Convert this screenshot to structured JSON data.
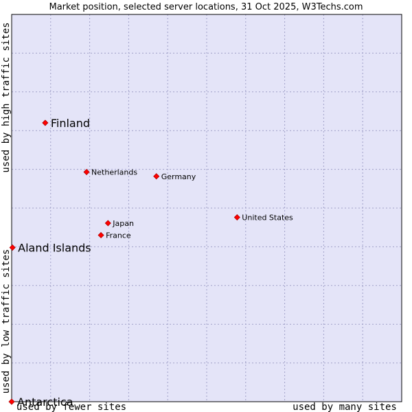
{
  "chart_data": {
    "type": "scatter",
    "title": "Market position, selected server locations, 31 Oct 2025, W3Techs.com",
    "xlabel_low": "used by fewer sites",
    "xlabel_high": "used by many sites",
    "ylabel_low": "used by low traffic sites",
    "ylabel_high": "used by high traffic sites",
    "xlim": [
      0,
      100
    ],
    "ylim": [
      0,
      100
    ],
    "grid": true,
    "series": [
      {
        "name": "Server locations",
        "points": [
          {
            "label": "Finland",
            "x": 8.6,
            "y": 72.0,
            "emphasis": true
          },
          {
            "label": "Netherlands",
            "x": 19.2,
            "y": 59.3,
            "emphasis": false
          },
          {
            "label": "Germany",
            "x": 37.1,
            "y": 58.2,
            "emphasis": false
          },
          {
            "label": "United States",
            "x": 57.8,
            "y": 47.6,
            "emphasis": false
          },
          {
            "label": "Japan",
            "x": 24.7,
            "y": 46.1,
            "emphasis": false
          },
          {
            "label": "France",
            "x": 22.9,
            "y": 43.0,
            "emphasis": false
          },
          {
            "label": "Aland Islands",
            "x": 0.2,
            "y": 39.8,
            "emphasis": true
          },
          {
            "label": "Antarctica",
            "x": 0.0,
            "y": 0.0,
            "emphasis": true
          }
        ]
      }
    ]
  },
  "colors": {
    "plot_background": "#e4e4f8",
    "grid": "#a0a0c8",
    "marker": "#ff0000",
    "marker_edge": "#b00000",
    "text": "#000000"
  }
}
